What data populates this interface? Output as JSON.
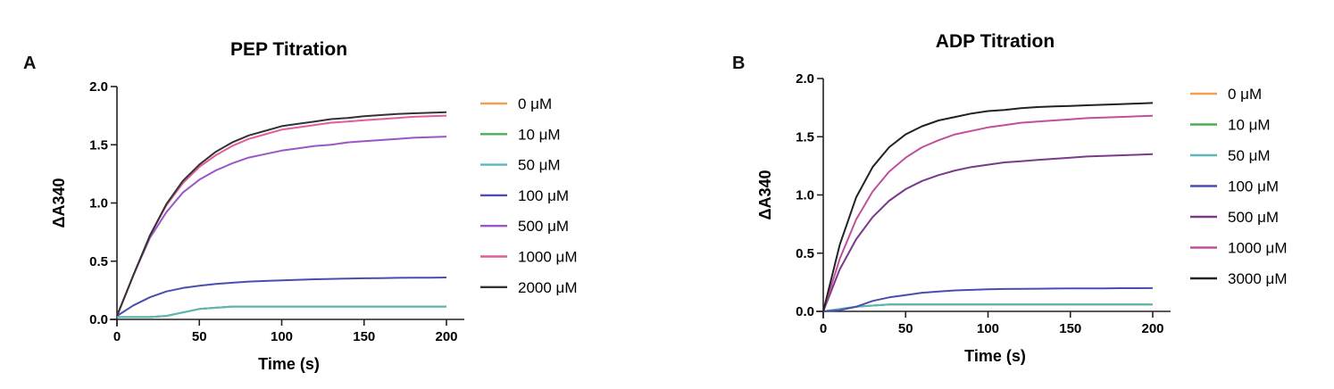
{
  "panels": [
    {
      "letter": "A",
      "chart_data": {
        "type": "line",
        "title": "PEP Titration",
        "xlabel": "Time (s)",
        "ylabel": "ΔA340",
        "xlim": [
          0,
          200
        ],
        "ylim": [
          0,
          2.0
        ],
        "xticks": [
          0,
          50,
          100,
          150,
          200
        ],
        "yticks": [
          0.0,
          0.5,
          1.0,
          1.5,
          2.0
        ],
        "ytick_labels": [
          "0.0",
          "0.5",
          "1.0",
          "1.5",
          "2.0"
        ],
        "grid": false,
        "legend_position": "right",
        "x": [
          0,
          10,
          20,
          30,
          40,
          50,
          60,
          70,
          80,
          90,
          100,
          110,
          120,
          130,
          140,
          150,
          160,
          170,
          180,
          190,
          200
        ],
        "series": [
          {
            "name": "0 μM",
            "color": "#f0a050",
            "values": [
              0.02,
              0.02,
              0.02,
              0.03,
              0.06,
              0.09,
              0.1,
              0.11,
              0.11,
              0.11,
              0.11,
              0.11,
              0.11,
              0.11,
              0.11,
              0.11,
              0.11,
              0.11,
              0.11,
              0.11,
              0.11
            ]
          },
          {
            "name": "10 μM",
            "color": "#4caf50",
            "values": [
              0.02,
              0.02,
              0.02,
              0.03,
              0.06,
              0.09,
              0.1,
              0.11,
              0.11,
              0.11,
              0.11,
              0.11,
              0.11,
              0.11,
              0.11,
              0.11,
              0.11,
              0.11,
              0.11,
              0.11,
              0.11
            ]
          },
          {
            "name": "50 μM",
            "color": "#5ab6b8",
            "values": [
              0.02,
              0.02,
              0.02,
              0.03,
              0.06,
              0.09,
              0.1,
              0.11,
              0.11,
              0.11,
              0.11,
              0.11,
              0.11,
              0.11,
              0.11,
              0.11,
              0.11,
              0.11,
              0.11,
              0.11,
              0.11
            ]
          },
          {
            "name": "100 μM",
            "color": "#4a4db0",
            "values": [
              0.03,
              0.12,
              0.19,
              0.24,
              0.27,
              0.29,
              0.305,
              0.315,
              0.325,
              0.33,
              0.335,
              0.34,
              0.345,
              0.348,
              0.351,
              0.353,
              0.355,
              0.357,
              0.358,
              0.359,
              0.36
            ]
          },
          {
            "name": "500 μM",
            "color": "#9b55c9",
            "values": [
              0.03,
              0.38,
              0.7,
              0.92,
              1.09,
              1.2,
              1.28,
              1.34,
              1.39,
              1.42,
              1.45,
              1.47,
              1.49,
              1.5,
              1.52,
              1.53,
              1.54,
              1.55,
              1.56,
              1.565,
              1.57
            ]
          },
          {
            "name": "1000 μM",
            "color": "#e05c9a",
            "values": [
              0.03,
              0.38,
              0.72,
              0.98,
              1.17,
              1.31,
              1.41,
              1.49,
              1.55,
              1.59,
              1.63,
              1.65,
              1.67,
              1.69,
              1.7,
              1.71,
              1.72,
              1.73,
              1.74,
              1.745,
              1.75
            ]
          },
          {
            "name": "2000 μM",
            "color": "#333333",
            "values": [
              0.03,
              0.38,
              0.72,
              0.99,
              1.19,
              1.33,
              1.44,
              1.52,
              1.58,
              1.62,
              1.66,
              1.68,
              1.7,
              1.72,
              1.73,
              1.745,
              1.755,
              1.765,
              1.77,
              1.775,
              1.78
            ]
          }
        ]
      }
    },
    {
      "letter": "B",
      "chart_data": {
        "type": "line",
        "title": "ADP Titration",
        "xlabel": "Time (s)",
        "ylabel": "ΔA340",
        "xlim": [
          0,
          200
        ],
        "ylim": [
          0,
          2.0
        ],
        "xticks": [
          0,
          50,
          100,
          150,
          200
        ],
        "yticks": [
          0.0,
          0.5,
          1.0,
          1.5,
          2.0
        ],
        "ytick_labels": [
          "0.0",
          "0.5",
          "1.0",
          "1.5",
          "2.0"
        ],
        "grid": false,
        "legend_position": "right",
        "x": [
          0,
          10,
          20,
          30,
          40,
          50,
          60,
          70,
          80,
          90,
          100,
          110,
          120,
          130,
          140,
          150,
          160,
          170,
          180,
          190,
          200
        ],
        "series": [
          {
            "name": "0 μM",
            "color": "#f0a050",
            "values": [
              0.0,
              0.02,
              0.04,
              0.05,
              0.06,
              0.06,
              0.06,
              0.06,
              0.06,
              0.06,
              0.06,
              0.06,
              0.06,
              0.06,
              0.06,
              0.06,
              0.06,
              0.06,
              0.06,
              0.06,
              0.06
            ]
          },
          {
            "name": "10 μM",
            "color": "#4caf50",
            "values": [
              0.0,
              0.02,
              0.04,
              0.05,
              0.06,
              0.06,
              0.06,
              0.06,
              0.06,
              0.06,
              0.06,
              0.06,
              0.06,
              0.06,
              0.06,
              0.06,
              0.06,
              0.06,
              0.06,
              0.06,
              0.06
            ]
          },
          {
            "name": "50 μM",
            "color": "#5ab6b8",
            "values": [
              0.0,
              0.02,
              0.04,
              0.05,
              0.06,
              0.06,
              0.06,
              0.06,
              0.06,
              0.06,
              0.06,
              0.06,
              0.06,
              0.06,
              0.06,
              0.06,
              0.06,
              0.06,
              0.06,
              0.06,
              0.06
            ]
          },
          {
            "name": "100 μM",
            "color": "#4a4db0",
            "values": [
              0.0,
              0.01,
              0.04,
              0.09,
              0.12,
              0.14,
              0.16,
              0.17,
              0.18,
              0.185,
              0.19,
              0.192,
              0.194,
              0.195,
              0.196,
              0.197,
              0.198,
              0.198,
              0.199,
              0.199,
              0.2
            ]
          },
          {
            "name": "500 μM",
            "color": "#7a3a8a",
            "values": [
              0.0,
              0.36,
              0.62,
              0.81,
              0.95,
              1.05,
              1.12,
              1.17,
              1.21,
              1.24,
              1.26,
              1.28,
              1.29,
              1.3,
              1.31,
              1.32,
              1.33,
              1.335,
              1.34,
              1.345,
              1.35
            ]
          },
          {
            "name": "1000 μM",
            "color": "#c0509a",
            "values": [
              0.0,
              0.45,
              0.79,
              1.03,
              1.2,
              1.32,
              1.41,
              1.47,
              1.52,
              1.55,
              1.58,
              1.6,
              1.62,
              1.63,
              1.64,
              1.65,
              1.66,
              1.665,
              1.67,
              1.675,
              1.68
            ]
          },
          {
            "name": "3000 μM",
            "color": "#222222",
            "values": [
              0.0,
              0.57,
              0.98,
              1.24,
              1.41,
              1.52,
              1.59,
              1.64,
              1.67,
              1.7,
              1.72,
              1.73,
              1.745,
              1.755,
              1.76,
              1.765,
              1.77,
              1.775,
              1.78,
              1.785,
              1.79
            ]
          }
        ]
      }
    }
  ]
}
